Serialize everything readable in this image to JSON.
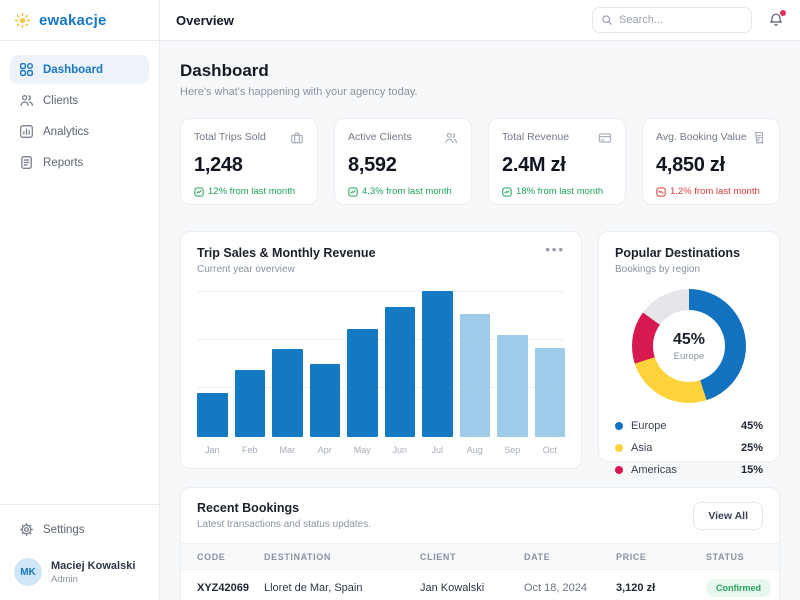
{
  "brand": {
    "name": "ewakacje"
  },
  "header": {
    "title": "Overview",
    "search_placeholder": "Search...",
    "has_unread_notification": true
  },
  "sidebar": {
    "items": [
      {
        "label": "Dashboard",
        "icon": "grid-icon",
        "active": true
      },
      {
        "label": "Clients",
        "icon": "users-icon",
        "active": false
      },
      {
        "label": "Analytics",
        "icon": "bar-chart-icon",
        "active": false
      },
      {
        "label": "Reports",
        "icon": "document-icon",
        "active": false
      }
    ],
    "settings_label": "Settings",
    "user": {
      "initials": "MK",
      "name": "Maciej Kowalski",
      "role": "Admin"
    }
  },
  "page": {
    "title": "Dashboard",
    "subtitle": "Here's what's happening with your agency today."
  },
  "stats": [
    {
      "label": "Total Trips Sold",
      "icon": "luggage-icon",
      "value": "1,248",
      "delta": "12% from last month",
      "direction": "up"
    },
    {
      "label": "Active Clients",
      "icon": "users-icon",
      "value": "8,592",
      "delta": "4.3% from last month",
      "direction": "up"
    },
    {
      "label": "Total Revenue",
      "icon": "credit-card-icon",
      "value": "2.4M zł",
      "delta": "18% from last month",
      "direction": "up"
    },
    {
      "label": "Avg. Booking Value",
      "icon": "receipt-icon",
      "value": "4,850 zł",
      "delta": "1.2% from last month",
      "direction": "down"
    }
  ],
  "chart_data": [
    {
      "type": "bar",
      "title": "Trip Sales & Monthly Revenue",
      "subtitle": "Current year overview",
      "categories": [
        "Jan",
        "Feb",
        "Mar",
        "Apr",
        "May",
        "Jun",
        "Jul",
        "Aug",
        "Sep",
        "Oct"
      ],
      "values": [
        30,
        46,
        60,
        50,
        74,
        89,
        100,
        84,
        70,
        61
      ],
      "units": "relative (% of tallest bar, no y-axis labels shown)",
      "ylim": [
        0,
        100
      ],
      "grid": true,
      "bar_colors": [
        "#1379c3",
        "#1379c3",
        "#1379c3",
        "#1379c3",
        "#1379c3",
        "#1379c3",
        "#1379c3",
        "#9ecbe8",
        "#9ecbe8",
        "#9ecbe8"
      ]
    },
    {
      "type": "pie",
      "style": "donut",
      "title": "Popular Destinations",
      "subtitle": "Bookings by region",
      "center_value": "45%",
      "center_label": "Europe",
      "segments": [
        {
          "label": "Europe",
          "value": 45,
          "color": "#1272bf"
        },
        {
          "label": "Asia",
          "value": 25,
          "color": "#fdd23a"
        },
        {
          "label": "Americas",
          "value": 15,
          "color": "#d6194f"
        },
        {
          "value": 15,
          "color": "#e4e6e9"
        }
      ],
      "legend": [
        {
          "label": "Europe",
          "pct": "45%",
          "color": "#1272bf"
        },
        {
          "label": "Asia",
          "pct": "25%",
          "color": "#fdd23a"
        },
        {
          "label": "Americas",
          "pct": "15%",
          "color": "#d6194f"
        }
      ],
      "legend_position": "bottom"
    }
  ],
  "bookings": {
    "title": "Recent Bookings",
    "subtitle": "Latest transactions and status updates.",
    "view_all_label": "View All",
    "columns": [
      "CODE",
      "DESTINATION",
      "CLIENT",
      "DATE",
      "PRICE",
      "STATUS"
    ],
    "rows": [
      {
        "code": "XYZ42069",
        "destination": "Lloret de Mar, Spain",
        "client": "Jan Kowalski",
        "date": "Oct 18, 2024",
        "price": "3,120 zł",
        "status": "Confirmed"
      }
    ]
  },
  "colors": {
    "brand_blue": "#1878c8",
    "logo_sun_yellow": "#edbb2e",
    "bar_primary": "#1379c3",
    "bar_light": "#9ecbe8",
    "positive_green": "#1fa35c",
    "negative_red": "#d93b3b",
    "status_confirmed_bg": "#e9f8ef",
    "status_confirmed_text": "#27a45f",
    "notification_dot": "#e0315b"
  }
}
